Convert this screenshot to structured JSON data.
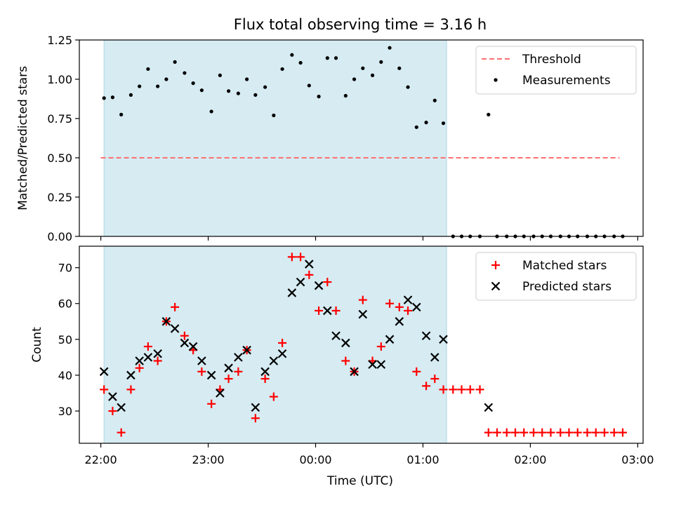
{
  "chart_data": {
    "type": "scatter",
    "title": "Flux total observing time = 3.16 h",
    "xlabel": "Time (UTC)",
    "x_tick_labels": [
      "22:00",
      "23:00",
      "00:00",
      "01:00",
      "02:00",
      "03:00"
    ],
    "x_ticks_hours": [
      0,
      1,
      2,
      3,
      4,
      5
    ],
    "xlim_hours": [
      -0.2,
      5.05
    ],
    "shaded_interval_hours": [
      0.03,
      3.22
    ],
    "colors": {
      "shade": "#add8e6",
      "threshold": "#ff7070",
      "measurements": "#000000",
      "matched": "#ff0000",
      "predicted": "#000000"
    },
    "panels": [
      {
        "ylabel": "Matched/Predicted stars",
        "ylim": [
          0.0,
          1.25
        ],
        "y_ticks": [
          0.0,
          0.25,
          0.5,
          0.75,
          1.0,
          1.25
        ],
        "y_tick_labels": [
          "0.00",
          "0.25",
          "0.50",
          "0.75",
          "1.00",
          "1.25"
        ],
        "legend": [
          "Threshold",
          "Measurements"
        ],
        "legend_loc": "upper right",
        "threshold": {
          "name": "Threshold",
          "value": 0.5,
          "x_range_hours": [
            0.0,
            4.83
          ]
        },
        "series": [
          {
            "name": "Measurements",
            "marker": "dot",
            "x_hours": [
              0.03,
              0.11,
              0.19,
              0.28,
              0.36,
              0.44,
              0.53,
              0.61,
              0.69,
              0.78,
              0.86,
              0.94,
              1.03,
              1.11,
              1.19,
              1.28,
              1.36,
              1.44,
              1.53,
              1.61,
              1.69,
              1.78,
              1.86,
              1.94,
              2.03,
              2.11,
              2.19,
              2.28,
              2.36,
              2.44,
              2.53,
              2.61,
              2.69,
              2.78,
              2.86,
              2.94,
              3.03,
              3.11,
              3.19,
              3.28,
              3.36,
              3.44,
              3.53,
              3.61,
              3.69,
              3.78,
              3.86,
              3.94,
              4.03,
              4.11,
              4.19,
              4.28,
              4.36,
              4.44,
              4.53,
              4.61,
              4.69,
              4.78,
              4.86
            ],
            "y": [
              0.88,
              0.885,
              0.775,
              0.9,
              0.955,
              1.065,
              0.955,
              1.0,
              1.11,
              1.04,
              0.975,
              0.93,
              0.795,
              1.025,
              0.925,
              0.91,
              1.0,
              0.9,
              0.95,
              0.77,
              1.065,
              1.155,
              1.105,
              0.96,
              0.89,
              1.135,
              1.135,
              0.895,
              1.0,
              1.07,
              1.025,
              1.11,
              1.2,
              1.07,
              0.95,
              0.695,
              0.725,
              0.865,
              0.72,
              0.0,
              0.0,
              0.0,
              0.0,
              0.775,
              0.0,
              0.0,
              0.0,
              0.0,
              0.0,
              0.0,
              0.0,
              0.0,
              0.0,
              0.0,
              0.0,
              0.0,
              0.0,
              0.0,
              0.0
            ]
          }
        ]
      },
      {
        "ylabel": "Count",
        "ylim": [
          21,
          76
        ],
        "y_ticks": [
          30,
          40,
          50,
          60,
          70
        ],
        "y_tick_labels": [
          "30",
          "40",
          "50",
          "60",
          "70"
        ],
        "legend": [
          "Matched stars",
          "Predicted stars"
        ],
        "legend_loc": "upper right",
        "series": [
          {
            "name": "Matched stars",
            "marker": "plus",
            "x_hours": [
              0.03,
              0.11,
              0.19,
              0.28,
              0.36,
              0.44,
              0.53,
              0.61,
              0.69,
              0.78,
              0.86,
              0.94,
              1.03,
              1.11,
              1.19,
              1.28,
              1.36,
              1.44,
              1.53,
              1.61,
              1.69,
              1.78,
              1.86,
              1.94,
              2.03,
              2.11,
              2.19,
              2.28,
              2.36,
              2.44,
              2.53,
              2.61,
              2.69,
              2.78,
              2.86,
              2.94,
              3.03,
              3.11,
              3.19,
              3.28,
              3.36,
              3.44,
              3.53,
              3.61,
              3.69,
              3.78,
              3.86,
              3.94,
              4.03,
              4.11,
              4.19,
              4.28,
              4.36,
              4.44,
              4.53,
              4.61,
              4.69,
              4.78,
              4.86
            ],
            "y": [
              36,
              30,
              24,
              36,
              42,
              48,
              44,
              55,
              59,
              51,
              47,
              41,
              32,
              36,
              39,
              41,
              47,
              28,
              39,
              34,
              49,
              73,
              73,
              68,
              58,
              66,
              58,
              44,
              41,
              61,
              44,
              48,
              60,
              59,
              58,
              41,
              37,
              39,
              36,
              36,
              36,
              36,
              36,
              24,
              24,
              24,
              24,
              24,
              24,
              24,
              24,
              24,
              24,
              24,
              24,
              24,
              24,
              24,
              24
            ]
          },
          {
            "name": "Predicted stars",
            "marker": "x",
            "x_hours": [
              0.03,
              0.11,
              0.19,
              0.28,
              0.36,
              0.44,
              0.53,
              0.61,
              0.69,
              0.78,
              0.86,
              0.94,
              1.03,
              1.11,
              1.19,
              1.28,
              1.36,
              1.44,
              1.53,
              1.61,
              1.69,
              1.78,
              1.86,
              1.94,
              2.03,
              2.11,
              2.19,
              2.28,
              2.36,
              2.44,
              2.53,
              2.61,
              2.69,
              2.78,
              2.86,
              2.94,
              3.03,
              3.11,
              3.19,
              3.61
            ],
            "y": [
              41,
              34,
              31,
              40,
              44,
              45,
              46,
              55,
              53,
              49,
              48,
              44,
              40,
              35,
              42,
              45,
              47,
              31,
              41,
              44,
              46,
              63,
              66,
              71,
              65,
              58,
              51,
              49,
              41,
              57,
              43,
              43,
              50,
              55,
              61,
              59,
              51,
              45,
              50,
              31
            ]
          }
        ]
      }
    ]
  }
}
